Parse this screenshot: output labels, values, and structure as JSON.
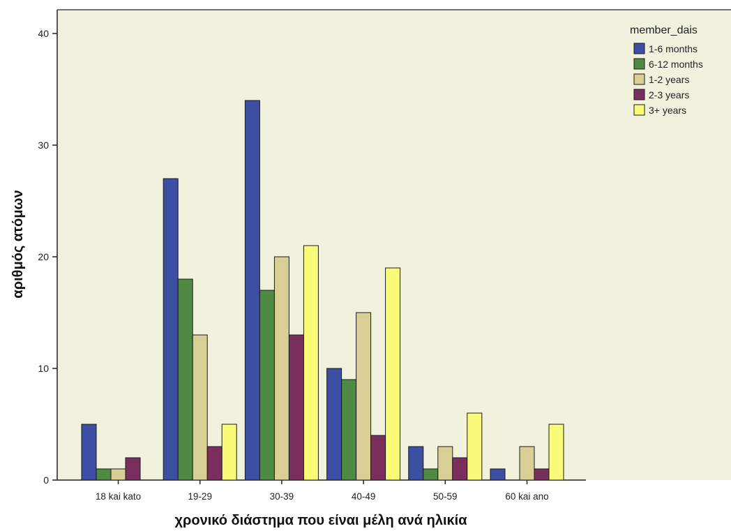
{
  "chart_data": {
    "type": "bar",
    "xlabel": "χρονικό διάστημα που είναι μέλη ανά ηλικία",
    "ylabel": "αριθμός ατόμων",
    "ylim": [
      0,
      42
    ],
    "yticks": [
      0,
      10,
      20,
      30,
      40
    ],
    "categories": [
      "18 kai kato",
      "19-29",
      "30-39",
      "40-49",
      "50-59",
      "60 kai ano"
    ],
    "legend_title": "member_dais",
    "legend_position": "top-right",
    "grid": false,
    "series": [
      {
        "name": "1-6 months",
        "color": "#3d4fa3",
        "values": [
          5,
          27,
          34,
          10,
          3,
          1
        ]
      },
      {
        "name": "6-12 months",
        "color": "#4f8a45",
        "values": [
          1,
          18,
          17,
          9,
          1,
          0
        ]
      },
      {
        "name": "1-2 years",
        "color": "#d9cf94",
        "values": [
          1,
          13,
          20,
          15,
          3,
          3
        ]
      },
      {
        "name": "2-3 years",
        "color": "#7a2f5f",
        "values": [
          2,
          3,
          13,
          4,
          2,
          1
        ]
      },
      {
        "name": "3+ years",
        "color": "#fbfb7a",
        "values": [
          0,
          5,
          21,
          19,
          6,
          5
        ]
      }
    ],
    "plot_background": "#f1f2dd"
  }
}
